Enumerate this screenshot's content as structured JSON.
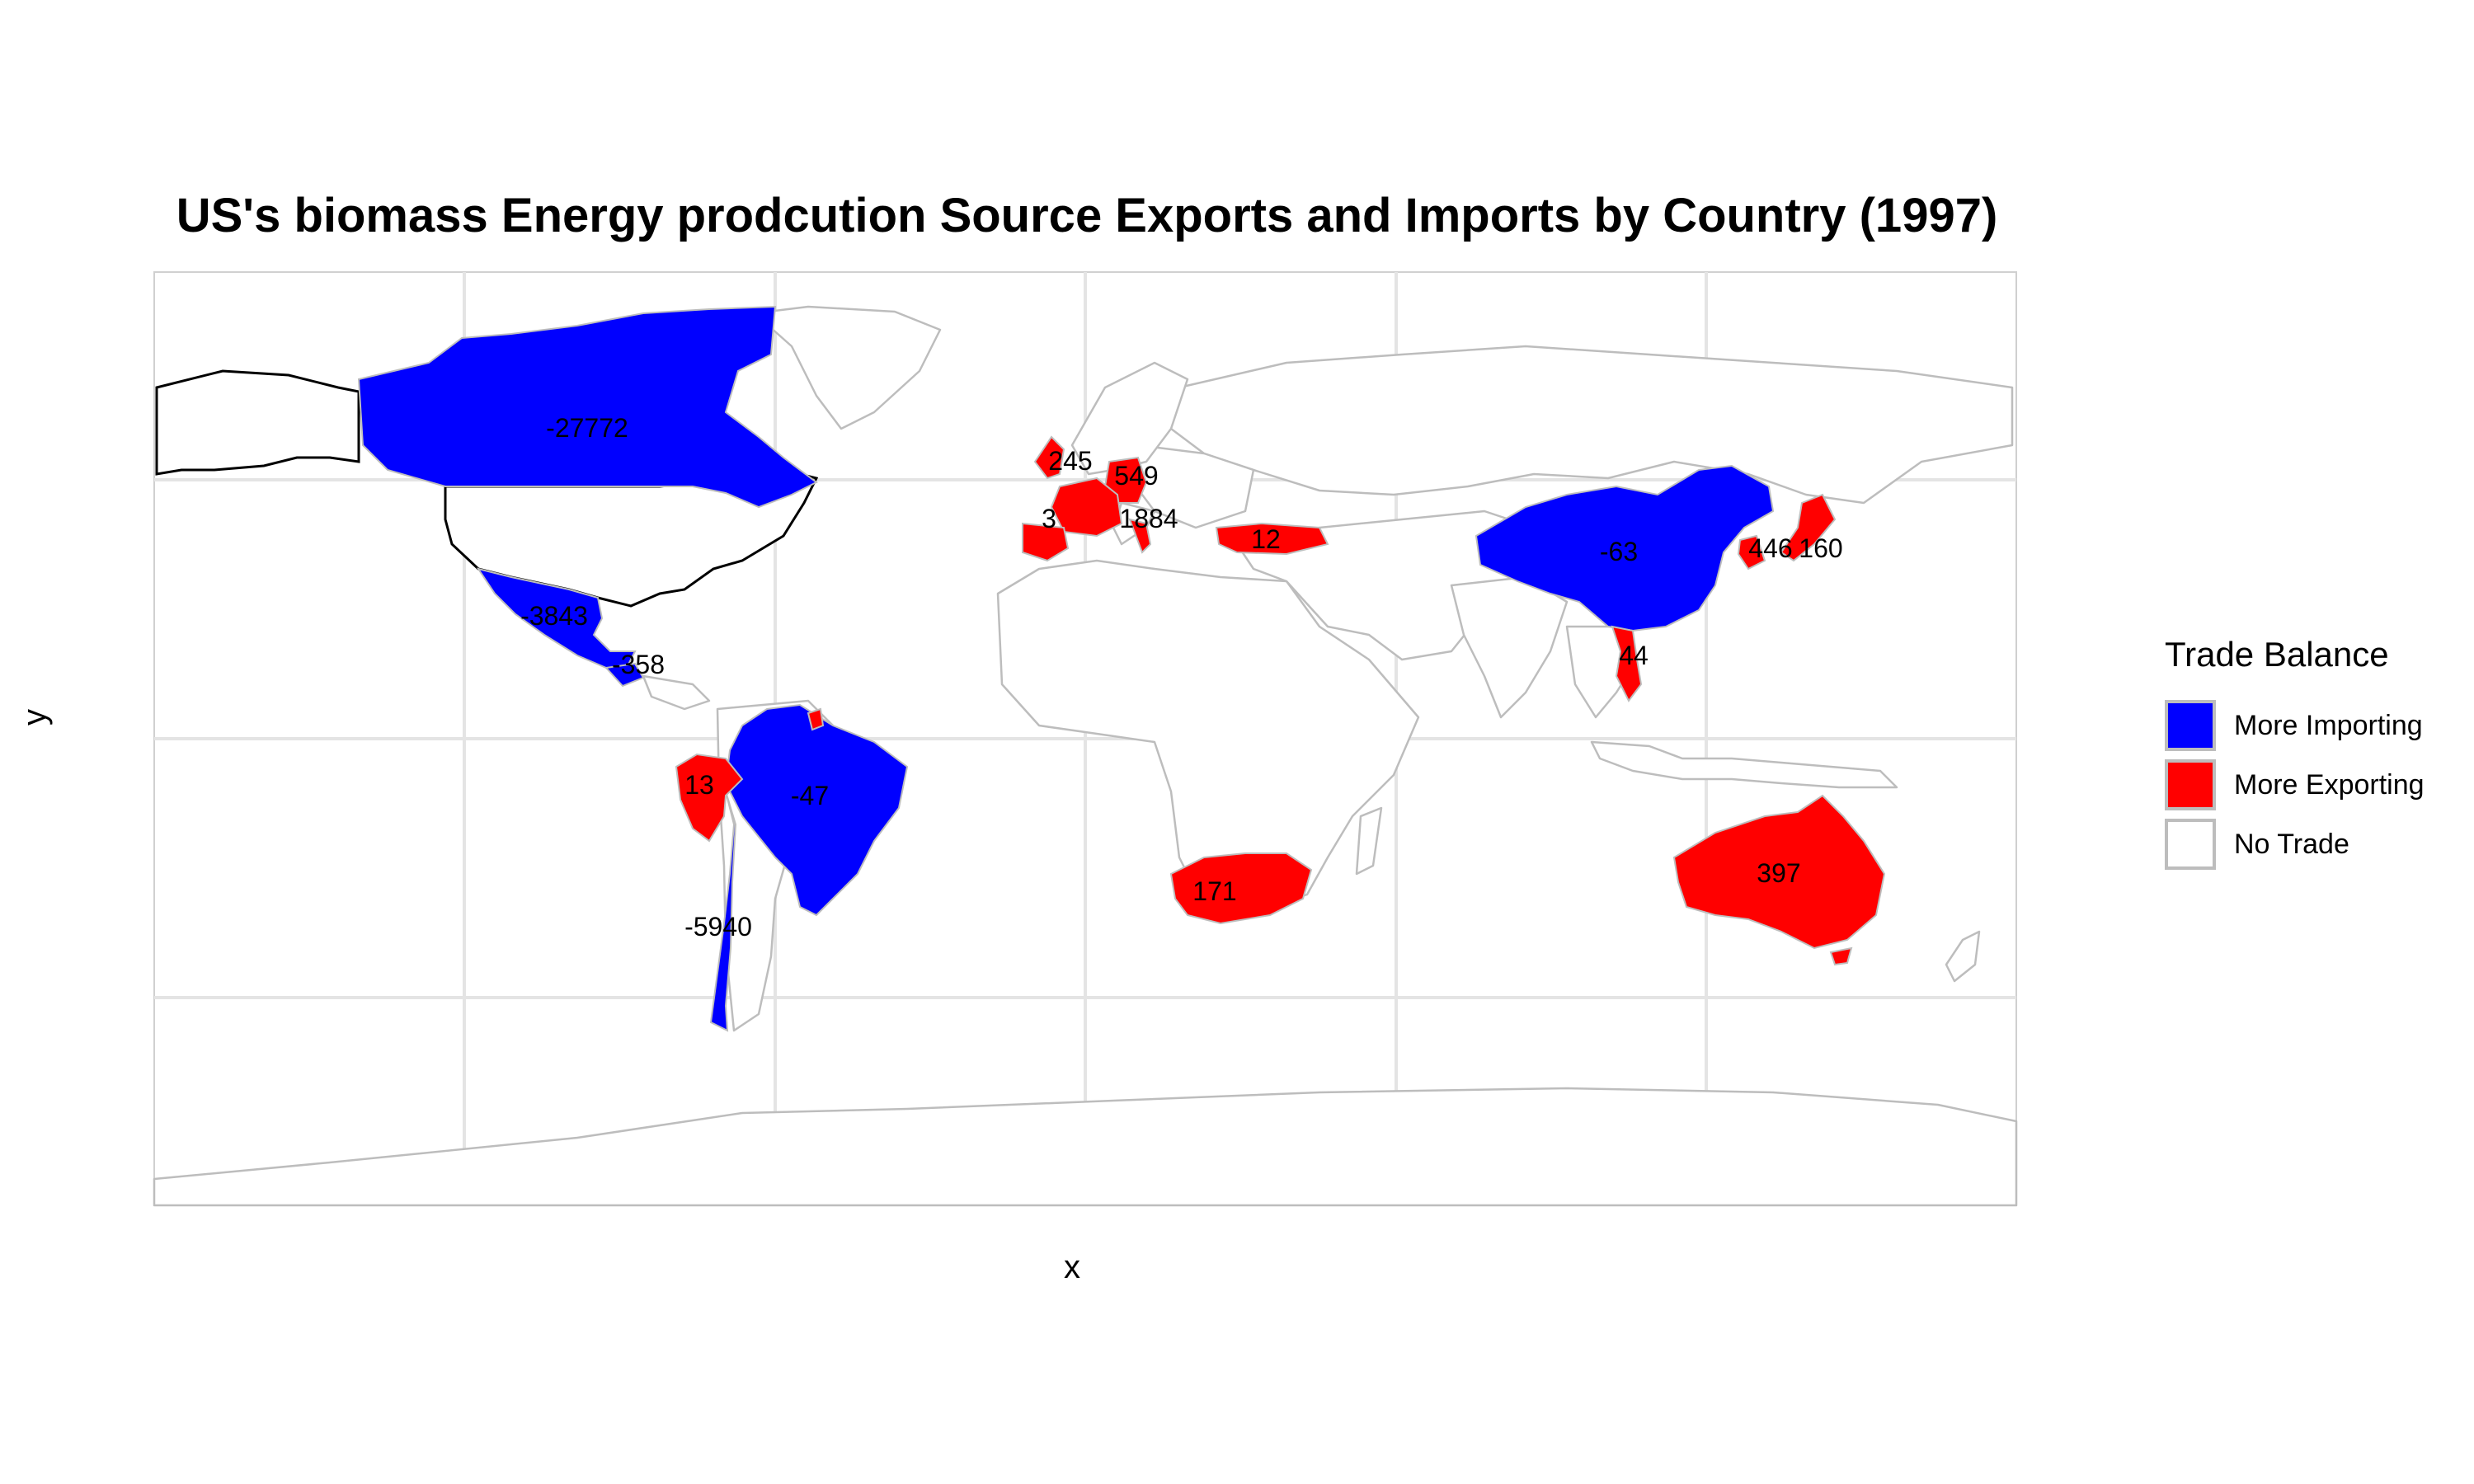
{
  "title": "US's biomass Energy prodcution Source Exports and Imports by Country (1997)",
  "x_axis_label": "x",
  "y_axis_label": "y",
  "colors": {
    "importing": "#0000ff",
    "exporting": "#ff0000",
    "no_trade": "#ffffff",
    "border": "#bdbdbd",
    "us_border": "#000000",
    "grid": "#e4e4e4"
  },
  "legend": {
    "title": "Trade Balance",
    "items": [
      {
        "label": "More Importing",
        "color": "#0000ff"
      },
      {
        "label": "More Exporting",
        "color": "#ff0000"
      },
      {
        "label": "No Trade",
        "color": "#ffffff"
      }
    ]
  },
  "map_data": {
    "countries": [
      {
        "name": "Canada",
        "balance": "importing",
        "label": "-27772"
      },
      {
        "name": "Mexico",
        "balance": "importing",
        "label": "-3843"
      },
      {
        "name": "Guatemala",
        "balance": "importing",
        "label": "-358"
      },
      {
        "name": "Brazil",
        "balance": "importing",
        "label": "-47"
      },
      {
        "name": "Peru",
        "balance": "exporting",
        "label": "13"
      },
      {
        "name": "Chile",
        "balance": "importing",
        "label": "-5940"
      },
      {
        "name": "United Kingdom",
        "balance": "exporting",
        "label": "245"
      },
      {
        "name": "Germany",
        "balance": "exporting",
        "label": "549"
      },
      {
        "name": "Spain",
        "balance": "exporting",
        "label": "3"
      },
      {
        "name": "France",
        "balance": "exporting",
        "label": "1884"
      },
      {
        "name": "Turkey",
        "balance": "exporting",
        "label": "12"
      },
      {
        "name": "China",
        "balance": "importing",
        "label": "-63"
      },
      {
        "name": "South Korea",
        "balance": "exporting",
        "label": "446"
      },
      {
        "name": "Japan",
        "balance": "exporting",
        "label": "160"
      },
      {
        "name": "Vietnam",
        "balance": "exporting",
        "label": "44"
      },
      {
        "name": "South Africa",
        "balance": "exporting",
        "label": "171"
      },
      {
        "name": "Australia",
        "balance": "exporting",
        "label": "397"
      }
    ]
  }
}
